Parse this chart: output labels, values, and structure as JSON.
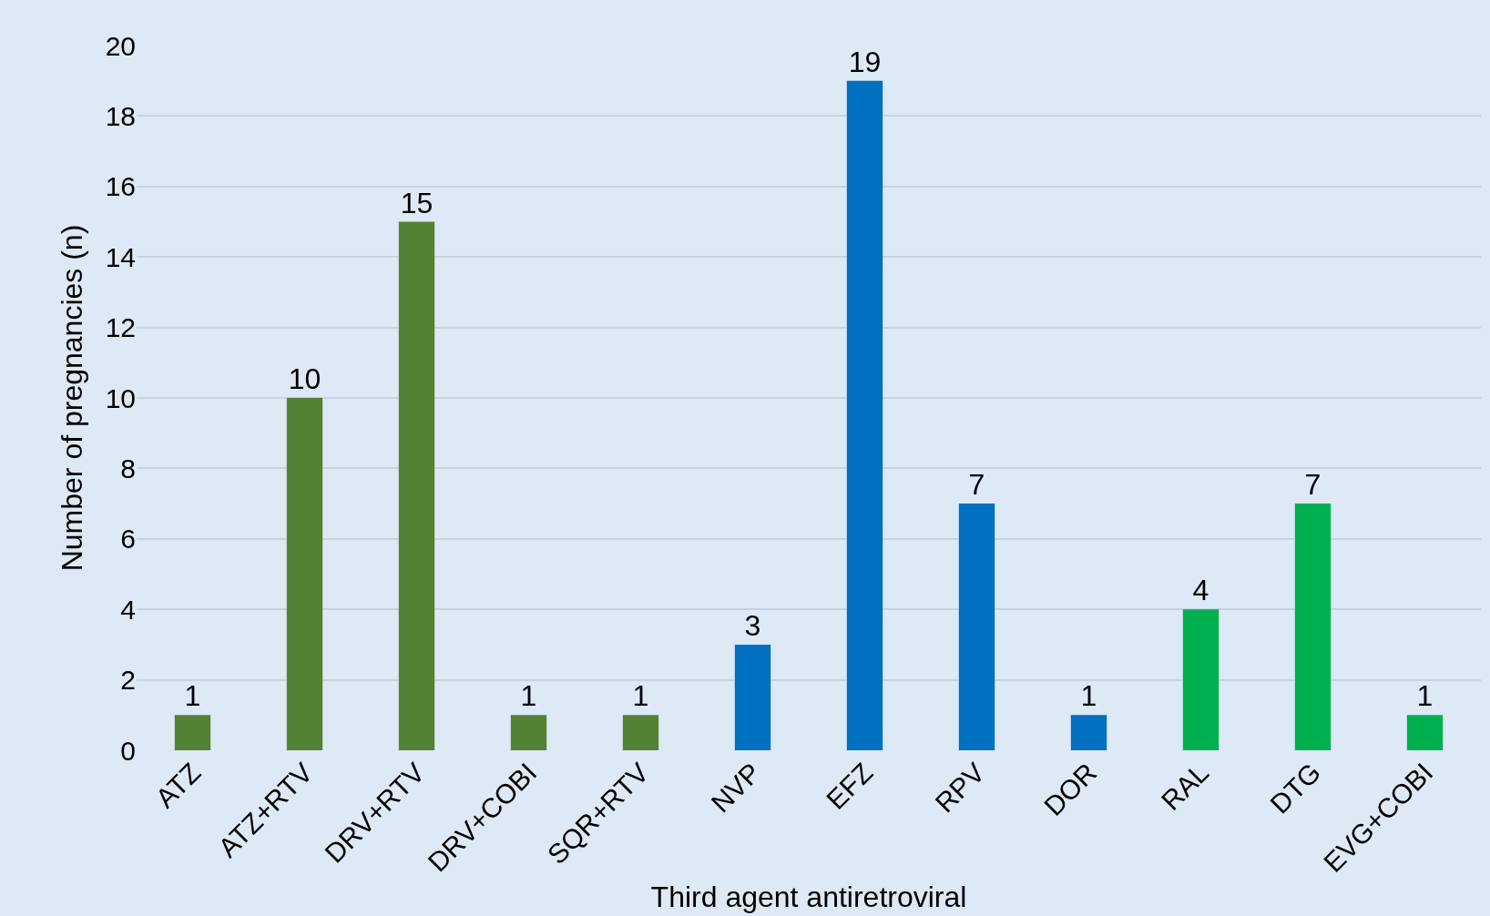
{
  "chart_data": {
    "type": "bar",
    "xlabel": "Third agent antiretroviral",
    "ylabel": "Number of pregnancies (n)",
    "categories": [
      "ATZ",
      "ATZ+RTV",
      "DRV+RTV",
      "DRV+COBI",
      "SQR+RTV",
      "NVP",
      "EFZ",
      "RPV",
      "DOR",
      "RAL",
      "DTG",
      "EVG+COBI"
    ],
    "values": [
      1,
      10,
      15,
      1,
      1,
      3,
      19,
      7,
      1,
      4,
      7,
      1
    ],
    "colors": [
      "#548235",
      "#548235",
      "#548235",
      "#548235",
      "#548235",
      "#0070c0",
      "#0070c0",
      "#0070c0",
      "#0070c0",
      "#00b050",
      "#00b050",
      "#00b050"
    ],
    "ylim": [
      0,
      20
    ],
    "yticks": [
      0,
      2,
      4,
      6,
      8,
      10,
      12,
      14,
      16,
      18,
      20
    ],
    "grid": "y",
    "data_labels": true
  }
}
